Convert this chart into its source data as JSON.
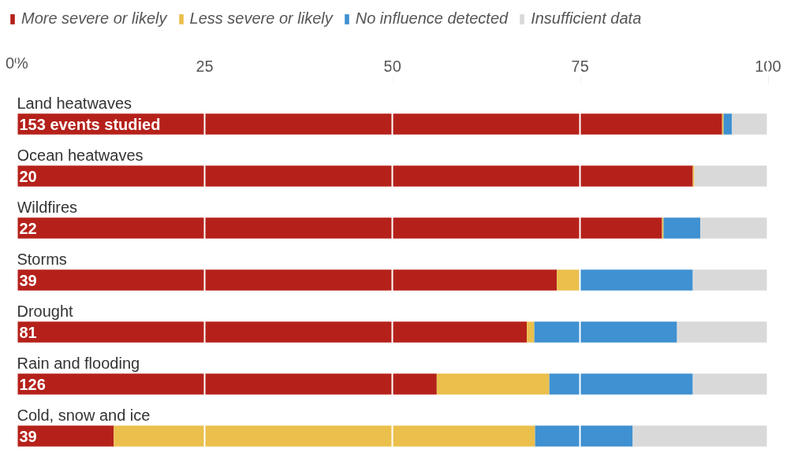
{
  "chart_data": {
    "type": "bar",
    "orientation": "horizontal",
    "stacked": true,
    "categories": [
      "Land heatwaves",
      "Ocean heatwaves",
      "Wildfires",
      "Storms",
      "Drought",
      "Rain and flooding",
      "Cold, snow and ice"
    ],
    "series": [
      {
        "name": "More severe or likely",
        "color": "#b5211a",
        "values": [
          93.9,
          90.0,
          85.9,
          71.9,
          67.9,
          55.9,
          12.9
        ]
      },
      {
        "name": "Less severe or likely",
        "color": "#eabf4b",
        "values": [
          0.2,
          0.2,
          0.2,
          3.0,
          1.0,
          15.0,
          56.1
        ]
      },
      {
        "name": "No influence detected",
        "color": "#3f91d1",
        "values": [
          1.1,
          0.0,
          4.9,
          15.1,
          19.0,
          19.1,
          13.0
        ]
      },
      {
        "name": "Insufficient data",
        "color": "#d9d9d9",
        "values": [
          4.8,
          9.8,
          9.0,
          10.0,
          12.1,
          10.0,
          18.0
        ]
      }
    ],
    "xlim": [
      0,
      100
    ],
    "xticks": [
      {
        "value": 0,
        "label": "0%"
      },
      25,
      50,
      75,
      100
    ],
    "grid": "x",
    "legend": "top left",
    "annotations": [
      "153 events studied",
      "20",
      "22",
      "39",
      "81",
      "126",
      "39"
    ]
  }
}
